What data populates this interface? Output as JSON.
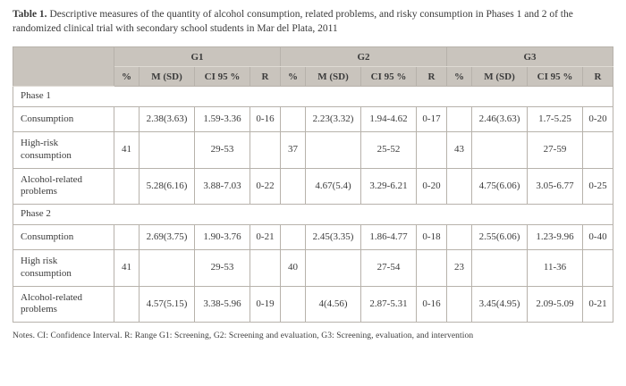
{
  "caption": {
    "label": "Table 1.",
    "text": "Descriptive measures of the quantity of alcohol consumption, related problems, and risky consumption in Phases 1 and 2 of the randomized clinical trial with secondary school students in Mar del Plata, 2011"
  },
  "table": {
    "groups": [
      "G1",
      "G2",
      "G3"
    ],
    "subheaders": [
      "%",
      "M (SD)",
      "CI 95 %",
      "R"
    ],
    "rows": [
      {
        "type": "section",
        "label": "Phase 1"
      },
      {
        "type": "data",
        "label": "Consumption",
        "cells": [
          "",
          "2.38(3.63)",
          "1.59-3.36",
          "0-16",
          "",
          "2.23(3.32)",
          "1.94-4.62",
          "0-17",
          "",
          "2.46(3.63)",
          "1.7-5.25",
          "0-20"
        ]
      },
      {
        "type": "data",
        "label": "High-risk consumption",
        "cells": [
          "41",
          "",
          "29-53",
          "",
          "37",
          "",
          "25-52",
          "",
          "43",
          "",
          "27-59",
          ""
        ]
      },
      {
        "type": "data",
        "label": "Alcohol-related problems",
        "cells": [
          "",
          "5.28(6.16)",
          "3.88-7.03",
          "0-22",
          "",
          "4.67(5.4)",
          "3.29-6.21",
          "0-20",
          "",
          "4.75(6.06)",
          "3.05-6.77",
          "0-25"
        ]
      },
      {
        "type": "section",
        "label": "Phase 2"
      },
      {
        "type": "data",
        "label": "Consumption",
        "cells": [
          "",
          "2.69(3.75)",
          "1.90-3.76",
          "0-21",
          "",
          "2.45(3.35)",
          "1.86-4.77",
          "0-18",
          "",
          "2.55(6.06)",
          "1.23-9.96",
          "0-40"
        ]
      },
      {
        "type": "data",
        "label": "High risk consumption",
        "cells": [
          "41",
          "",
          "29-53",
          "",
          "40",
          "",
          "27-54",
          "",
          "23",
          "",
          "11-36",
          ""
        ]
      },
      {
        "type": "data",
        "label": "Alcohol-related problems",
        "cells": [
          "",
          "4.57(5.15)",
          "3.38-5.96",
          "0-19",
          "",
          "4(4.56)",
          "2.87-5.31",
          "0-16",
          "",
          "3.45(4.95)",
          "2.09-5.09",
          "0-21"
        ]
      }
    ]
  },
  "notes": "Notes. CI: Confidence Interval. R: Range G1: Screening, G2: Screening and evaluation, G3: Screening, evaluation, and intervention",
  "colors": {
    "header_bg": "#c9c4bd",
    "border": "#b7b2ab"
  }
}
